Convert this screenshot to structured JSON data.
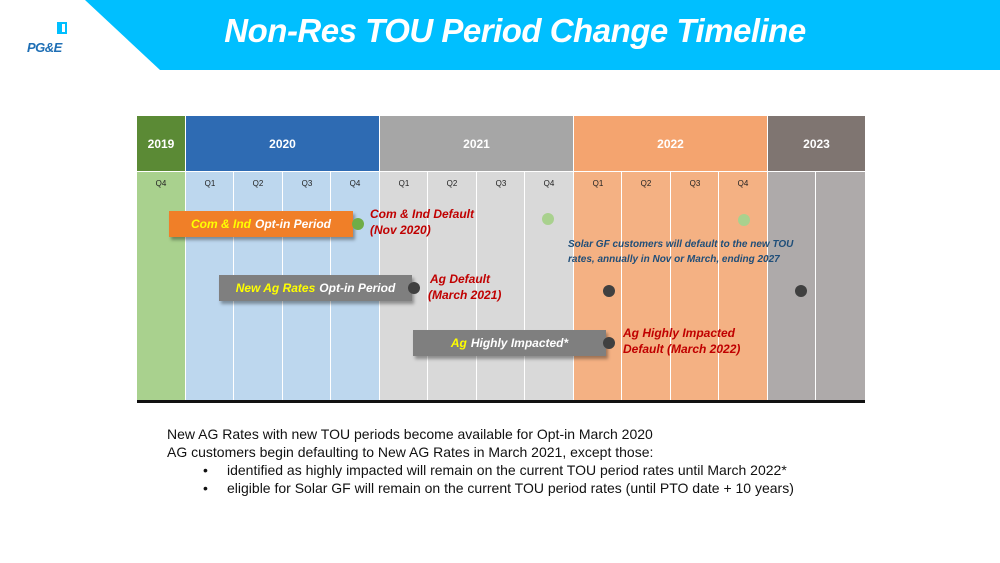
{
  "header": {
    "title": "Non-Res TOU Period Change Timeline",
    "logo_text": "PG&E",
    "banner_color": "#00bfff"
  },
  "timeline": {
    "years": [
      {
        "label": "2019",
        "color": "#5b8a35"
      },
      {
        "label": "2020",
        "color": "#2e6bb3"
      },
      {
        "label": "2021",
        "color": "#a6a6a6"
      },
      {
        "label": "2022",
        "color": "#f4a46f"
      },
      {
        "label": "2023",
        "color": "#7f7571"
      }
    ],
    "quarters": [
      "Q4",
      "Q1",
      "Q2",
      "Q3",
      "Q4",
      "Q1",
      "Q2",
      "Q3",
      "Q4",
      "Q1",
      "Q2",
      "Q3",
      "Q4",
      "",
      ""
    ],
    "bars": [
      {
        "highlight": "Com & Ind",
        "text": "Opt-in Period",
        "color": "#f07f28"
      },
      {
        "highlight": "New Ag Rates",
        "text": "Opt-in Period",
        "color": "#7f7f7f"
      },
      {
        "highlight": "Ag",
        "text": "Highly Impacted*",
        "color": "#7f7f7f"
      }
    ],
    "milestones": [
      {
        "line1": "Com & Ind Default",
        "line2": "(Nov 2020)"
      },
      {
        "line1": "Ag Default",
        "line2": "(March 2021)"
      },
      {
        "line1": "Ag Highly Impacted",
        "line2": "Default  (March 2022)"
      }
    ],
    "solar_note": {
      "line1": "Solar GF customers will default to the new TOU",
      "line2": "rates, annually in Nov or March, ending 2027"
    }
  },
  "notes": {
    "line1": "New AG Rates with new TOU periods become available for Opt-in March 2020",
    "line2": "AG customers begin defaulting to New AG Rates in March 2021, except those:",
    "bullets": [
      "identified as highly impacted will remain on the current TOU period rates until March 2022*",
      "eligible for Solar GF will remain on the current TOU period rates (until PTO date + 10 years)"
    ]
  }
}
